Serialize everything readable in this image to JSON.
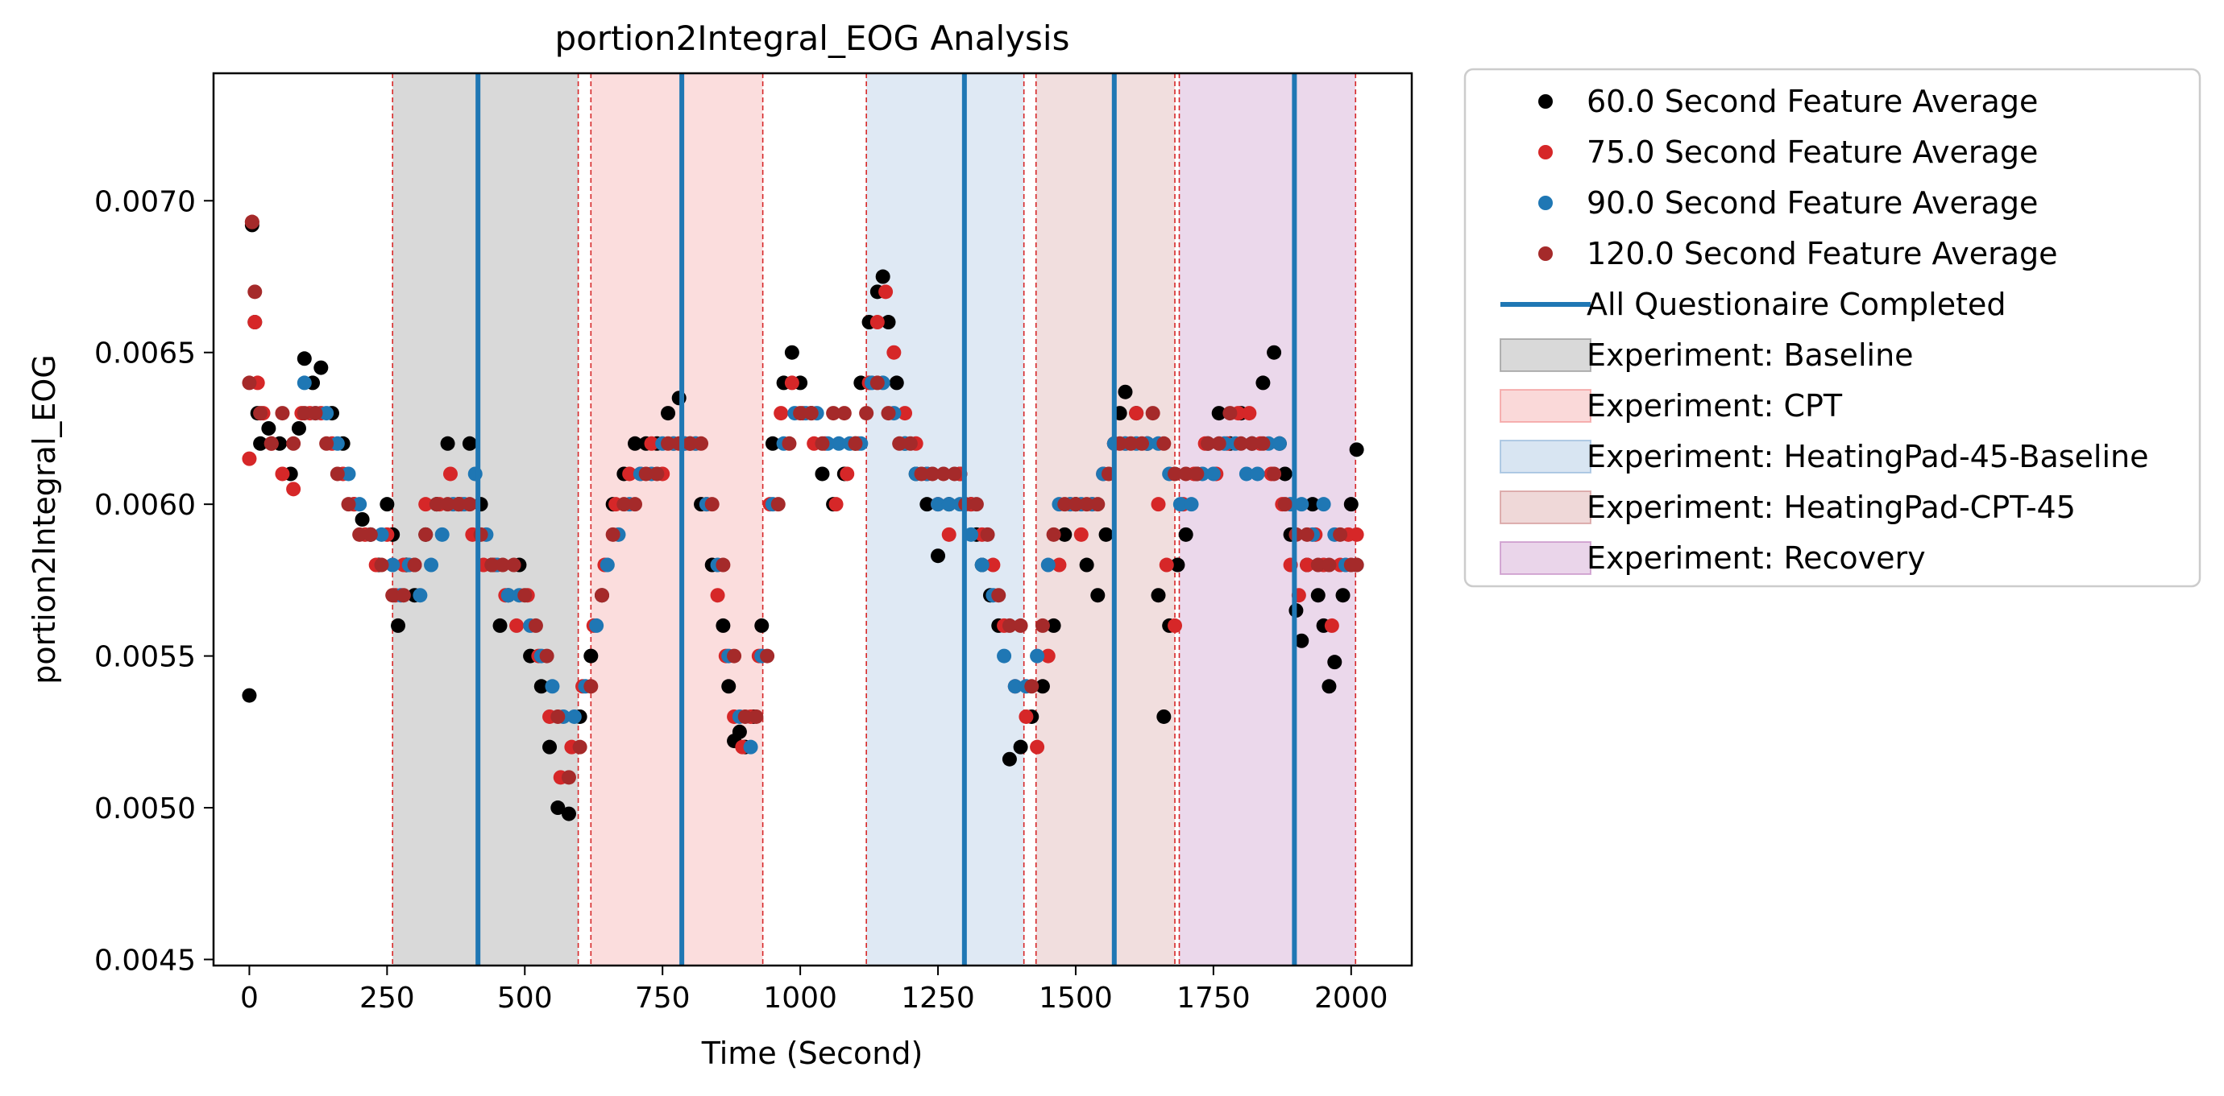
{
  "chart_data": {
    "type": "scatter",
    "title": "portion2Integral_EOG Analysis",
    "xlabel": "Time (Second)",
    "ylabel": "portion2Integral_EOG",
    "xlim": [
      -65,
      2110
    ],
    "ylim": [
      0.00448,
      0.00742
    ],
    "xticks": [
      0,
      250,
      500,
      750,
      1000,
      1250,
      1500,
      1750,
      2000
    ],
    "xtick_labels": [
      "0",
      "250",
      "500",
      "750",
      "1000",
      "1250",
      "1500",
      "1750",
      "2000"
    ],
    "yticks": [
      0.0045,
      0.005,
      0.0055,
      0.006,
      0.0065,
      0.007
    ],
    "ytick_labels": [
      "0.0045",
      "0.0050",
      "0.0055",
      "0.0060",
      "0.0065",
      "0.0070"
    ],
    "grid": false,
    "legend_position": "outside-right",
    "legend": [
      {
        "kind": "dot",
        "label": "60.0 Second Feature Average",
        "color": "#000000"
      },
      {
        "kind": "dot",
        "label": "75.0 Second Feature Average",
        "color": "#d62728"
      },
      {
        "kind": "dot",
        "label": "90.0 Second Feature Average",
        "color": "#1f77b4"
      },
      {
        "kind": "dot",
        "label": "120.0 Second Feature Average",
        "color": "#a52a2a"
      },
      {
        "kind": "line",
        "label": "All Questionaire Completed",
        "color": "#1f77b4"
      },
      {
        "kind": "patch",
        "label": "Experiment: Baseline",
        "color": "#808080"
      },
      {
        "kind": "patch",
        "label": "Experiment: CPT",
        "color": "#f08080"
      },
      {
        "kind": "patch",
        "label": "Experiment: HeatingPad-45-Baseline",
        "color": "#7fa9d3"
      },
      {
        "kind": "patch",
        "label": "Experiment: HeatingPad-CPT-45",
        "color": "#c97d7d"
      },
      {
        "kind": "patch",
        "label": "Experiment: Recovery",
        "color": "#b873b8"
      }
    ],
    "regions": [
      {
        "name": "Baseline",
        "start": 260,
        "end": 597,
        "color": "#808080",
        "opacity": 0.3
      },
      {
        "name": "CPT",
        "start": 620,
        "end": 932,
        "color": "#f08080",
        "opacity": 0.27
      },
      {
        "name": "HeatingPad-45-Baseline",
        "start": 1120,
        "end": 1406,
        "color": "#7fa9d3",
        "opacity": 0.25
      },
      {
        "name": "HeatingPad-CPT-45",
        "start": 1428,
        "end": 1680,
        "color": "#c97d7d",
        "opacity": 0.25
      },
      {
        "name": "Recovery",
        "start": 1688,
        "end": 2008,
        "color": "#b873b8",
        "opacity": 0.28
      }
    ],
    "questionnaire_lines": [
      415,
      785,
      1298,
      1570,
      1897
    ],
    "series": [
      {
        "name": "60.0 Second Feature Average",
        "color": "#000000",
        "x": [
          0,
          5,
          10,
          15,
          20,
          35,
          55,
          75,
          90,
          100,
          115,
          130,
          150,
          170,
          190,
          205,
          220,
          235,
          250,
          260,
          270,
          285,
          300,
          320,
          340,
          360,
          380,
          400,
          420,
          440,
          455,
          470,
          490,
          510,
          530,
          545,
          560,
          580,
          600,
          620,
          640,
          660,
          680,
          700,
          720,
          740,
          760,
          780,
          800,
          820,
          840,
          860,
          870,
          880,
          890,
          900,
          915,
          930,
          950,
          970,
          985,
          1000,
          1020,
          1040,
          1060,
          1080,
          1100,
          1110,
          1125,
          1140,
          1150,
          1160,
          1175,
          1190,
          1210,
          1230,
          1250,
          1270,
          1290,
          1310,
          1320,
          1330,
          1345,
          1360,
          1380,
          1400,
          1420,
          1440,
          1460,
          1480,
          1500,
          1520,
          1540,
          1555,
          1570,
          1580,
          1590,
          1610,
          1630,
          1650,
          1660,
          1670,
          1685,
          1700,
          1720,
          1740,
          1760,
          1780,
          1800,
          1820,
          1840,
          1860,
          1870,
          1880,
          1890,
          1900,
          1910,
          1920,
          1930,
          1940,
          1950,
          1960,
          1970,
          1985,
          2000,
          2010
        ],
        "y": [
          0.00537,
          0.00692,
          0.0066,
          0.0063,
          0.0062,
          0.00625,
          0.0062,
          0.0061,
          0.00625,
          0.00648,
          0.0064,
          0.00645,
          0.0063,
          0.0062,
          0.006,
          0.00595,
          0.0059,
          0.0058,
          0.006,
          0.0059,
          0.0056,
          0.0058,
          0.0057,
          0.0059,
          0.006,
          0.0062,
          0.006,
          0.0062,
          0.006,
          0.0058,
          0.0056,
          0.0057,
          0.0058,
          0.0055,
          0.0054,
          0.0052,
          0.005,
          0.00498,
          0.0053,
          0.0055,
          0.0057,
          0.006,
          0.0061,
          0.0062,
          0.0062,
          0.0062,
          0.0063,
          0.00635,
          0.0062,
          0.006,
          0.0058,
          0.0056,
          0.0054,
          0.00522,
          0.00525,
          0.0052,
          0.0053,
          0.0056,
          0.0062,
          0.0064,
          0.0065,
          0.0064,
          0.0063,
          0.0061,
          0.006,
          0.0061,
          0.0062,
          0.0064,
          0.0066,
          0.0067,
          0.00675,
          0.0066,
          0.0064,
          0.0062,
          0.0061,
          0.006,
          0.00583,
          0.006,
          0.0061,
          0.006,
          0.0059,
          0.0058,
          0.0057,
          0.0056,
          0.00516,
          0.0052,
          0.0053,
          0.0054,
          0.0056,
          0.0059,
          0.006,
          0.0058,
          0.0057,
          0.0059,
          0.0062,
          0.0063,
          0.00637,
          0.0063,
          0.0062,
          0.0057,
          0.0053,
          0.0056,
          0.0058,
          0.0059,
          0.0061,
          0.0062,
          0.0063,
          0.0062,
          0.0063,
          0.0062,
          0.0064,
          0.0065,
          0.0062,
          0.0061,
          0.0059,
          0.00565,
          0.00555,
          0.0058,
          0.006,
          0.0057,
          0.0056,
          0.0054,
          0.00548,
          0.0057,
          0.006,
          0.00618
        ]
      },
      {
        "name": "75.0 Second Feature Average",
        "color": "#d62728",
        "x": [
          0,
          5,
          10,
          15,
          25,
          40,
          60,
          80,
          95,
          110,
          130,
          150,
          170,
          190,
          210,
          230,
          250,
          265,
          280,
          300,
          320,
          345,
          365,
          385,
          405,
          425,
          445,
          465,
          485,
          505,
          525,
          545,
          565,
          585,
          605,
          625,
          645,
          665,
          690,
          710,
          730,
          750,
          770,
          790,
          810,
          830,
          850,
          865,
          880,
          895,
          910,
          925,
          945,
          965,
          985,
          1005,
          1025,
          1045,
          1065,
          1085,
          1105,
          1125,
          1140,
          1155,
          1170,
          1190,
          1210,
          1230,
          1250,
          1270,
          1290,
          1310,
          1330,
          1350,
          1370,
          1390,
          1410,
          1430,
          1450,
          1470,
          1490,
          1510,
          1530,
          1550,
          1570,
          1590,
          1610,
          1630,
          1650,
          1665,
          1680,
          1695,
          1715,
          1735,
          1755,
          1775,
          1795,
          1815,
          1835,
          1855,
          1875,
          1890,
          1905,
          1920,
          1935,
          1950,
          1965,
          1980,
          1995,
          2010
        ],
        "y": [
          0.00615,
          0.00693,
          0.0066,
          0.0064,
          0.0063,
          0.0062,
          0.0061,
          0.00605,
          0.0063,
          0.0063,
          0.0063,
          0.0062,
          0.0061,
          0.006,
          0.0059,
          0.0058,
          0.0059,
          0.0057,
          0.0058,
          0.0058,
          0.006,
          0.006,
          0.0061,
          0.006,
          0.0059,
          0.0058,
          0.0058,
          0.0057,
          0.0056,
          0.0057,
          0.0055,
          0.0053,
          0.0051,
          0.0052,
          0.0054,
          0.0056,
          0.0058,
          0.006,
          0.0061,
          0.0061,
          0.0062,
          0.0061,
          0.0062,
          0.0062,
          0.0062,
          0.006,
          0.0057,
          0.0055,
          0.0053,
          0.0052,
          0.0053,
          0.0055,
          0.006,
          0.0063,
          0.0064,
          0.0063,
          0.0062,
          0.0062,
          0.006,
          0.0061,
          0.0062,
          0.0064,
          0.0066,
          0.0067,
          0.0065,
          0.0063,
          0.0062,
          0.0061,
          0.006,
          0.0059,
          0.0061,
          0.006,
          0.0059,
          0.0058,
          0.0056,
          0.0054,
          0.0053,
          0.0052,
          0.0055,
          0.0058,
          0.006,
          0.0059,
          0.006,
          0.0061,
          0.0062,
          0.0062,
          0.0063,
          0.0062,
          0.006,
          0.0058,
          0.0056,
          0.006,
          0.0061,
          0.0062,
          0.0061,
          0.0062,
          0.0063,
          0.0063,
          0.0062,
          0.0061,
          0.006,
          0.0058,
          0.0057,
          0.0058,
          0.0059,
          0.0058,
          0.0056,
          0.0058,
          0.0059,
          0.0059
        ]
      },
      {
        "name": "90.0 Second Feature Average",
        "color": "#1f77b4",
        "x": [
          100,
          120,
          140,
          160,
          180,
          200,
          220,
          240,
          260,
          275,
          290,
          310,
          330,
          350,
          370,
          390,
          410,
          430,
          450,
          470,
          490,
          510,
          530,
          550,
          570,
          590,
          610,
          630,
          650,
          670,
          690,
          710,
          730,
          750,
          770,
          790,
          810,
          830,
          850,
          870,
          890,
          910,
          930,
          950,
          970,
          990,
          1010,
          1030,
          1050,
          1070,
          1090,
          1110,
          1130,
          1150,
          1170,
          1190,
          1210,
          1230,
          1250,
          1270,
          1290,
          1310,
          1330,
          1350,
          1370,
          1390,
          1410,
          1430,
          1450,
          1470,
          1490,
          1510,
          1530,
          1550,
          1570,
          1590,
          1610,
          1630,
          1650,
          1670,
          1690,
          1710,
          1730,
          1750,
          1770,
          1790,
          1810,
          1830,
          1850,
          1870,
          1890,
          1910,
          1930,
          1950,
          1970,
          1990,
          2010
        ],
        "y": [
          0.0064,
          0.0063,
          0.0063,
          0.0062,
          0.0061,
          0.006,
          0.0059,
          0.0059,
          0.0058,
          0.0057,
          0.0058,
          0.0057,
          0.0058,
          0.0059,
          0.006,
          0.006,
          0.0061,
          0.0059,
          0.0058,
          0.0057,
          0.0057,
          0.0056,
          0.0055,
          0.0054,
          0.0053,
          0.0053,
          0.0054,
          0.0056,
          0.0058,
          0.0059,
          0.006,
          0.0061,
          0.0061,
          0.0062,
          0.0062,
          0.0062,
          0.0062,
          0.006,
          0.0058,
          0.0055,
          0.0053,
          0.0052,
          0.0055,
          0.006,
          0.0062,
          0.0063,
          0.0063,
          0.0063,
          0.0062,
          0.0062,
          0.0062,
          0.0062,
          0.0064,
          0.0064,
          0.0063,
          0.0062,
          0.0061,
          0.0061,
          0.006,
          0.006,
          0.006,
          0.0059,
          0.0058,
          0.0057,
          0.0055,
          0.0054,
          0.0054,
          0.0055,
          0.0058,
          0.006,
          0.006,
          0.006,
          0.006,
          0.0061,
          0.0062,
          0.0062,
          0.0062,
          0.0062,
          0.0062,
          0.0061,
          0.006,
          0.006,
          0.0061,
          0.0061,
          0.0062,
          0.0062,
          0.0061,
          0.0061,
          0.0062,
          0.0062,
          0.006,
          0.006,
          0.0059,
          0.006,
          0.0059,
          0.0058,
          0.0058
        ]
      },
      {
        "name": "120.0 Second Feature Average",
        "color": "#a52a2a",
        "x": [
          0,
          5,
          10,
          20,
          40,
          60,
          80,
          100,
          120,
          140,
          160,
          180,
          200,
          220,
          240,
          260,
          280,
          300,
          320,
          340,
          360,
          380,
          400,
          420,
          440,
          460,
          480,
          500,
          520,
          540,
          560,
          580,
          600,
          620,
          640,
          660,
          680,
          700,
          720,
          740,
          760,
          780,
          800,
          820,
          840,
          860,
          880,
          900,
          920,
          940,
          960,
          980,
          1000,
          1020,
          1040,
          1060,
          1080,
          1100,
          1120,
          1140,
          1160,
          1180,
          1200,
          1220,
          1240,
          1260,
          1280,
          1300,
          1320,
          1340,
          1360,
          1380,
          1400,
          1420,
          1440,
          1460,
          1480,
          1500,
          1520,
          1540,
          1560,
          1580,
          1600,
          1620,
          1640,
          1660,
          1680,
          1700,
          1720,
          1740,
          1760,
          1780,
          1800,
          1820,
          1840,
          1860,
          1880,
          1900,
          1920,
          1940,
          1960,
          1980,
          2000,
          2010
        ],
        "y": [
          0.0064,
          0.00693,
          0.0067,
          0.0063,
          0.0062,
          0.0063,
          0.0062,
          0.0063,
          0.0063,
          0.0062,
          0.0061,
          0.006,
          0.0059,
          0.0059,
          0.0058,
          0.0057,
          0.0057,
          0.0058,
          0.0059,
          0.006,
          0.006,
          0.006,
          0.006,
          0.0059,
          0.0058,
          0.0058,
          0.0058,
          0.0057,
          0.0056,
          0.0055,
          0.0053,
          0.0051,
          0.0052,
          0.0054,
          0.0057,
          0.0059,
          0.006,
          0.006,
          0.0061,
          0.0061,
          0.0062,
          0.0062,
          0.0062,
          0.0062,
          0.006,
          0.0058,
          0.0055,
          0.0053,
          0.0053,
          0.0055,
          0.006,
          0.0062,
          0.0063,
          0.0063,
          0.0062,
          0.0063,
          0.0063,
          0.0062,
          0.0063,
          0.0064,
          0.0063,
          0.0062,
          0.0062,
          0.0061,
          0.0061,
          0.0061,
          0.0061,
          0.006,
          0.006,
          0.0059,
          0.0057,
          0.0056,
          0.0056,
          0.0054,
          0.0056,
          0.0059,
          0.006,
          0.006,
          0.006,
          0.006,
          0.0061,
          0.0062,
          0.0062,
          0.0062,
          0.0063,
          0.0062,
          0.0061,
          0.0061,
          0.0061,
          0.0062,
          0.0062,
          0.0063,
          0.0062,
          0.0062,
          0.0062,
          0.0061,
          0.006,
          0.0059,
          0.0059,
          0.0058,
          0.0058,
          0.0059,
          0.0058,
          0.0058
        ]
      }
    ]
  }
}
